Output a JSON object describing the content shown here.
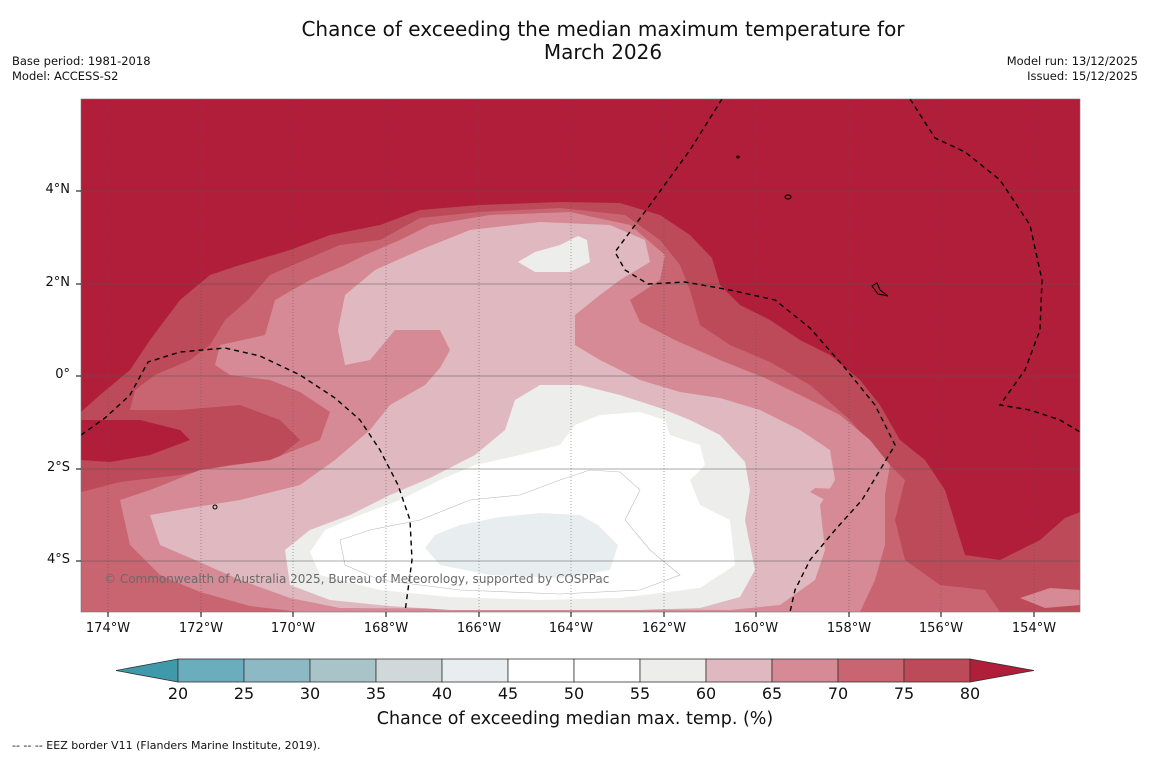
{
  "title_line1": "Chance of exceeding the median maximum temperature for",
  "title_line2": "March 2026",
  "base_period": "Base period: 1981-2018",
  "model": "Model: ACCESS-S2",
  "model_run": "Model run: 13/12/2025",
  "issued": "Issued: 15/12/2025",
  "copyright": "© Commonwealth of Australia 2025, Bureau of Meteorology, supported by COSPPac",
  "lat_labels": [
    "4°N",
    "2°N",
    "0°",
    "2°S",
    "4°S"
  ],
  "lon_labels": [
    "174°W",
    "172°W",
    "170°W",
    "168°W",
    "166°W",
    "164°W",
    "162°W",
    "160°W",
    "158°W",
    "156°W",
    "154°W"
  ],
  "colorbar": {
    "label": "Chance of exceeding median max. temp. (%)",
    "ticks": [
      "20",
      "25",
      "30",
      "35",
      "40",
      "45",
      "50",
      "55",
      "60",
      "65",
      "70",
      "75",
      "80"
    ],
    "colors": [
      "#3e9aaa",
      "#6aaebd",
      "#8db9c4",
      "#a9c4c9",
      "#d1d8d9",
      "#e8eeef",
      "#ffffff",
      "#ffffff",
      "#ededeb",
      "#e0b9c0",
      "#d58a96",
      "#c86571",
      "#bd4a58",
      "#b01e39"
    ]
  },
  "footer": "--  --  -- EEZ border V11 (Flanders Marine Institute, 2019)."
}
